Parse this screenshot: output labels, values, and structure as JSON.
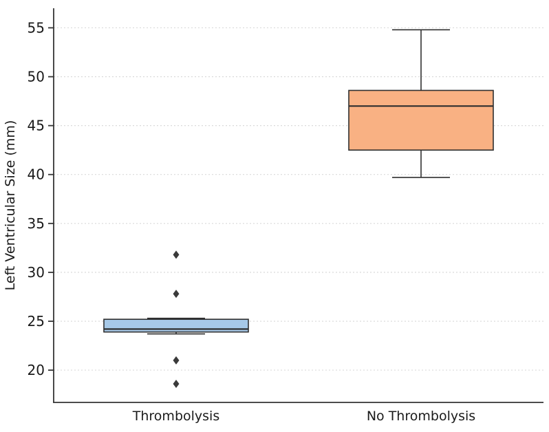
{
  "chart_data": {
    "type": "boxplot",
    "title": "",
    "xlabel": "",
    "ylabel": "Left Ventricular Size (mm)",
    "ylim": [
      16.7,
      57.0
    ],
    "yticks": [
      20,
      25,
      30,
      35,
      40,
      45,
      50,
      55
    ],
    "grid": "horizontal, light gray dotted",
    "legend": "none",
    "categories": [
      "Thrombolysis",
      "No Thrombolysis"
    ],
    "series": [
      {
        "name": "Thrombolysis",
        "color": "#a7c9e8",
        "edge_color": "#2f2f2f",
        "whisker_low": 23.7,
        "q1": 23.9,
        "median": 24.2,
        "q3": 25.2,
        "whisker_high": 25.3,
        "outliers": [
          31.8,
          27.8,
          21.0,
          18.6
        ]
      },
      {
        "name": "No Thrombolysis",
        "color": "#f9b183",
        "edge_color": "#2f2f2f",
        "whisker_low": 39.7,
        "q1": 42.5,
        "median": 47.0,
        "q3": 48.6,
        "whisker_high": 54.8,
        "outliers": []
      }
    ],
    "colors": {
      "background": "#ffffff",
      "gridline": "#d9d9d9",
      "spine": "#333333",
      "tick_label": "#1a1a1a",
      "outlier_marker": "#3a3a3a"
    }
  }
}
